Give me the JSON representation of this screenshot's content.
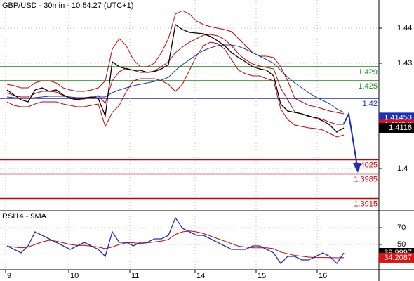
{
  "chart_data": [
    {
      "type": "line",
      "title": "GBP/USD - 30min - 10:54:27 (UTC+1)",
      "x": [
        1,
        2,
        3,
        4,
        5,
        6,
        7,
        8,
        9,
        10,
        11,
        12,
        13,
        14,
        15,
        16,
        17,
        18,
        19,
        20,
        21,
        22,
        23,
        24,
        25,
        26,
        27,
        28,
        29,
        30,
        31,
        32,
        33,
        34,
        35,
        36,
        37,
        38,
        39,
        40,
        41,
        42,
        43,
        44,
        45,
        46,
        47,
        48,
        49
      ],
      "xlim": [
        0,
        54
      ],
      "ylim": [
        1.388,
        1.448
      ],
      "yticks": [
        1.4,
        1.43,
        1.44
      ],
      "grid": true,
      "series": [
        {
          "color": "#cc0000",
          "values": [
            1.424,
            1.4236,
            1.423,
            1.423,
            1.4244,
            1.425,
            1.425,
            1.4244,
            1.423,
            1.4224,
            1.422,
            1.422,
            1.4224,
            1.423,
            1.425,
            1.434,
            1.437,
            1.435,
            1.431,
            1.429,
            1.429,
            1.43,
            1.433,
            1.437,
            1.444,
            1.445,
            1.444,
            1.442,
            1.441,
            1.4404,
            1.44,
            1.4396,
            1.439,
            1.437,
            1.435,
            1.433,
            1.432,
            1.432,
            1.4316,
            1.429,
            1.425,
            1.42,
            1.419,
            1.418,
            1.4176,
            1.417,
            1.4164,
            1.416,
            1.4156
          ]
        },
        {
          "color": "#cc0000",
          "values": [
            1.419,
            1.418,
            1.4176,
            1.4176,
            1.4184,
            1.419,
            1.419,
            1.419,
            1.4184,
            1.418,
            1.4176,
            1.4176,
            1.418,
            1.4184,
            1.412,
            1.416,
            1.418,
            1.422,
            1.425,
            1.4256,
            1.4256,
            1.4256,
            1.425,
            1.424,
            1.422,
            1.424,
            1.428,
            1.432,
            1.435,
            1.436,
            1.4356,
            1.434,
            1.431,
            1.428,
            1.427,
            1.4264,
            1.4264,
            1.4256,
            1.425,
            1.417,
            1.414,
            1.4124,
            1.412,
            1.4116,
            1.4114,
            1.411,
            1.41,
            1.409,
            1.4096
          ]
        },
        {
          "color": "#cc0000",
          "values": [
            1.4216,
            1.4208,
            1.4204,
            1.4204,
            1.4214,
            1.422,
            1.422,
            1.4218,
            1.4208,
            1.4202,
            1.4198,
            1.4198,
            1.4202,
            1.4208,
            1.4186,
            1.425,
            1.4276,
            1.4286,
            1.428,
            1.4274,
            1.4274,
            1.4278,
            1.429,
            1.4304,
            1.433,
            1.4346,
            1.436,
            1.437,
            1.438,
            1.4382,
            1.4378,
            1.4368,
            1.435,
            1.4326,
            1.431,
            1.4298,
            1.4292,
            1.4288,
            1.4284,
            1.423,
            1.4196,
            1.4162,
            1.4156,
            1.4148,
            1.4146,
            1.414,
            1.4132,
            1.4126,
            1.4126
          ]
        },
        {
          "color": "#2233aa",
          "values": [
            1.4204,
            1.4202,
            1.42,
            1.42,
            1.4202,
            1.4204,
            1.4206,
            1.4206,
            1.4206,
            1.4204,
            1.4202,
            1.4202,
            1.4204,
            1.4204,
            1.4204,
            1.4216,
            1.4224,
            1.423,
            1.4236,
            1.424,
            1.4244,
            1.4248,
            1.4252,
            1.426,
            1.428,
            1.4296,
            1.431,
            1.4324,
            1.4336,
            1.4344,
            1.435,
            1.4352,
            1.4352,
            1.4348,
            1.434,
            1.433,
            1.432,
            1.431,
            1.43,
            1.428,
            1.426,
            1.4244,
            1.423,
            1.4216,
            1.4204,
            1.4194,
            1.4184,
            1.417,
            1.416
          ]
        },
        {
          "color": "#000000",
          "values": [
            1.4224,
            1.421,
            1.4196,
            1.419,
            1.4224,
            1.423,
            1.422,
            1.4224,
            1.421,
            1.42,
            1.4196,
            1.42,
            1.4204,
            1.42,
            1.415,
            1.4304,
            1.429,
            1.4284,
            1.428,
            1.428,
            1.4274,
            1.4276,
            1.4284,
            1.4296,
            1.441,
            1.4396,
            1.4388,
            1.4386,
            1.4384,
            1.4376,
            1.4364,
            1.435,
            1.433,
            1.4316,
            1.4304,
            1.429,
            1.4284,
            1.428,
            1.4264,
            1.4184,
            1.4164,
            1.416,
            1.4156,
            1.415,
            1.4144,
            1.4136,
            1.4124,
            1.4104,
            1.4116
          ]
        }
      ],
      "levels": [
        {
          "value": 1.429,
          "color": "#1a8a1a"
        },
        {
          "value": 1.425,
          "color": "#1a8a1a"
        },
        {
          "value": 1.42,
          "color": "#1a2fbf"
        },
        {
          "value": 1.4025,
          "color": "#cc0000"
        },
        {
          "value": 1.3985,
          "color": "#cc0000"
        },
        {
          "value": 1.3915,
          "color": "#cc0000"
        }
      ],
      "price_tags": [
        {
          "value": 1.41453,
          "color": "#1a2fbf"
        },
        {
          "value": 1.41253,
          "color": "#dd1111"
        },
        {
          "value": 1.4116,
          "color": "#000000"
        }
      ]
    },
    {
      "type": "line",
      "title": "RSI14 - 9MA",
      "x": [
        1,
        2,
        3,
        4,
        5,
        6,
        7,
        8,
        9,
        10,
        11,
        12,
        13,
        14,
        15,
        16,
        17,
        18,
        19,
        20,
        21,
        22,
        23,
        24,
        25,
        26,
        27,
        28,
        29,
        30,
        31,
        32,
        33,
        34,
        35,
        36,
        37,
        38,
        39,
        40,
        41,
        42,
        43,
        44,
        45,
        46,
        47,
        48,
        49
      ],
      "xlim": [
        0,
        54
      ],
      "ylim": [
        20,
        90
      ],
      "yticks": [
        50,
        70
      ],
      "grid": true,
      "xticks": [
        {
          "value": 0.8,
          "label": "9"
        },
        {
          "value": 9.8,
          "label": "10"
        },
        {
          "value": 18.5,
          "label": "11"
        },
        {
          "value": 27.8,
          "label": "14"
        },
        {
          "value": 36.5,
          "label": "15"
        },
        {
          "value": 45.2,
          "label": "16"
        }
      ],
      "series": [
        {
          "color": "#cc0000",
          "values": [
            48,
            47,
            46,
            47,
            50,
            53,
            55,
            54,
            52,
            50,
            49,
            49,
            48,
            47,
            45,
            47,
            50,
            52,
            52,
            51,
            52,
            53,
            54,
            56,
            62,
            65,
            66,
            65,
            63,
            60,
            57,
            54,
            51,
            48,
            47,
            46,
            46,
            46,
            45,
            41,
            39,
            37,
            36,
            35,
            34.5,
            34.5,
            34.3,
            34.2,
            34.2087
          ]
        },
        {
          "color": "#1a2fbf",
          "values": [
            48.3,
            44.2,
            40,
            48.3,
            65,
            60.8,
            56.7,
            52.5,
            48.3,
            44.2,
            48.3,
            52.5,
            48.3,
            44.2,
            35.8,
            65,
            52.5,
            52.5,
            48.3,
            52.5,
            52.5,
            56.7,
            56.7,
            60.8,
            81.7,
            69.2,
            65,
            60.8,
            60.8,
            56.7,
            52.5,
            48.3,
            44.2,
            44.2,
            44.2,
            48.3,
            48.3,
            44.2,
            40,
            27.5,
            35.8,
            35.8,
            31.7,
            31.7,
            35.8,
            40,
            35.8,
            27.5,
            39.9997
          ]
        }
      ],
      "price_tags": [
        {
          "value": 39.9997,
          "color": "#000000"
        },
        {
          "value": 34.2087,
          "color": "#dd1111"
        }
      ]
    }
  ]
}
